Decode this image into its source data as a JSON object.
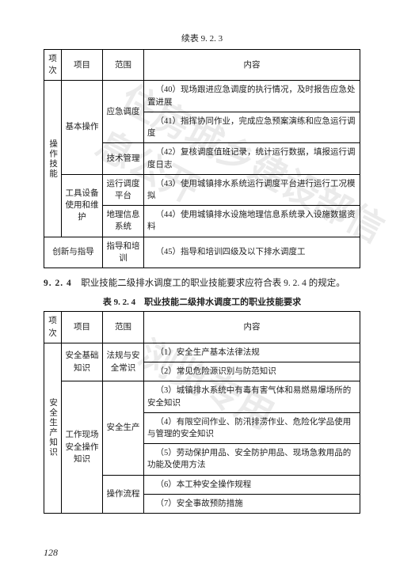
{
  "contTitle": "续表 9. 2. 3",
  "watermark1": "住房城乡建设部信息公开",
  "watermark2": "浏览专用",
  "table1": {
    "h1": "项次",
    "h2": "项目",
    "h3": "范围",
    "h4": "内容",
    "rowhead": "操作技能",
    "c1a": "基本操作",
    "c1b1": "应急调度",
    "c1b1_t1": "（40）现场跟进应急调度的执行情况，及时报告应急处置进展",
    "c1b1_t2": "（41）指挥协同作业，完成应急预案演练和应急运行调度",
    "c1b2": "技术管理",
    "c1b2_t": "（42）复核调度值班记录，统计运行数据，填报运行调度日志",
    "c2a": "工具设备使用和维护",
    "c2b1": "运行调度平台",
    "c2b1_t": "（43）使用城镇排水系统运行调度平台进行运行工况模拟",
    "c2b2": "地理信息系统",
    "c2b2_t": "（44）使用城镇排水设施地理信息系统录入设施数据资料",
    "c3a": "创新与指导",
    "c3b": "指导和培训",
    "c3_t": "（45）指导和培训四级及以下排水调度工"
  },
  "secNum": "9. 2. 4",
  "secText": "　职业技能二级排水调度工的职业技能要求应符合表 9. 2. 4 的规定。",
  "table2Title": "表 9. 2. 4　职业技能二级排水调度工的职业技能要求",
  "table2": {
    "h1": "项次",
    "h2": "项目",
    "h3": "范围",
    "h4": "内容",
    "rowhead": "安全生产知识",
    "c1a": "安全基础知识",
    "c1b": "法规与安全常识",
    "c1_t1": "（1）安全生产基本法律法规",
    "c1_t2": "（2）常见危险源识别与防范知识",
    "c2a": "工作现场安全操作知识",
    "c2b1": "安全生产",
    "c2b1_t1": "（3）城镇排水系统中有毒有害气体和易燃易爆场所的安全知识",
    "c2b1_t2": "（4）有限空间作业、防汛排涝作业、危险化学品使用与管理的安全知识",
    "c2b1_t3": "（5）劳动保护用品、安全防护用品、现场急救用品的功能及使用方法",
    "c2b2": "操作流程",
    "c2b2_t1": "（6）本工种安全操作规程",
    "c2b2_t2": "（7）安全事故预防措施"
  },
  "pageNum": "128"
}
